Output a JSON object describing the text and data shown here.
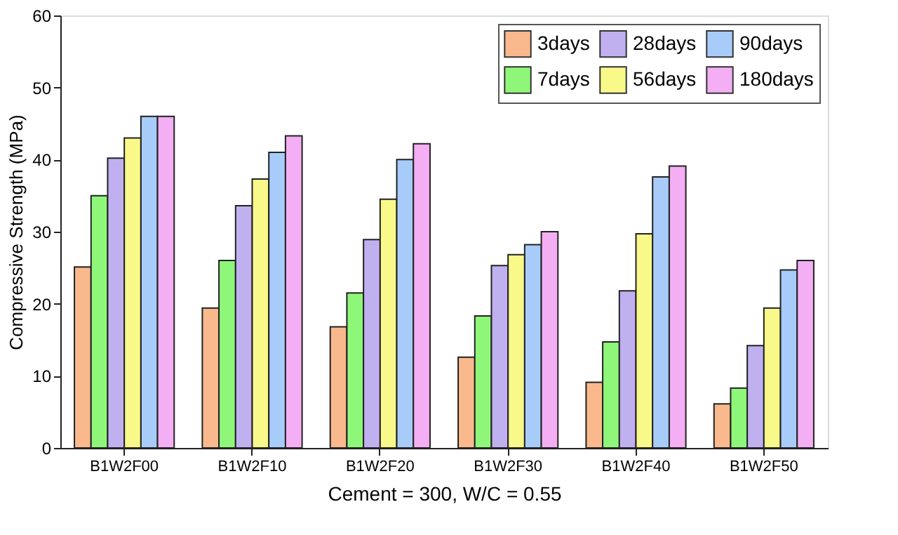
{
  "chart_data": {
    "type": "bar",
    "xlabel": "Cement = 300, W/C = 0.55",
    "ylabel": "Compressive Strength (MPa)",
    "categories": [
      "B1W2F00",
      "B1W2F10",
      "B1W2F20",
      "B1W2F30",
      "B1W2F40",
      "B1W2F50"
    ],
    "series": [
      {
        "name": "3days",
        "color": "#f9b98d",
        "values": [
          25.1,
          19.4,
          16.8,
          12.6,
          9.1,
          6.1
        ]
      },
      {
        "name": "7days",
        "color": "#8ef77a",
        "values": [
          35,
          26,
          21.5,
          18.3,
          14.7,
          8.3
        ]
      },
      {
        "name": "28days",
        "color": "#c0b0f0",
        "values": [
          40.2,
          33.6,
          28.9,
          25.3,
          21.8,
          14.2
        ]
      },
      {
        "name": "56days",
        "color": "#f9f98a",
        "values": [
          43,
          37.3,
          34.5,
          26.8,
          29.7,
          19.4
        ]
      },
      {
        "name": "90days",
        "color": "#a8ccf9",
        "values": [
          46,
          41,
          40,
          28.2,
          37.6,
          24.7
        ]
      },
      {
        "name": "180days",
        "color": "#f4aef4",
        "values": [
          46,
          43.3,
          42.2,
          30,
          39.1,
          26
        ]
      }
    ],
    "ylim": [
      0,
      60
    ],
    "yticks": [
      0,
      10,
      20,
      30,
      40,
      50,
      60
    ],
    "grid": false,
    "legend": "top right"
  }
}
